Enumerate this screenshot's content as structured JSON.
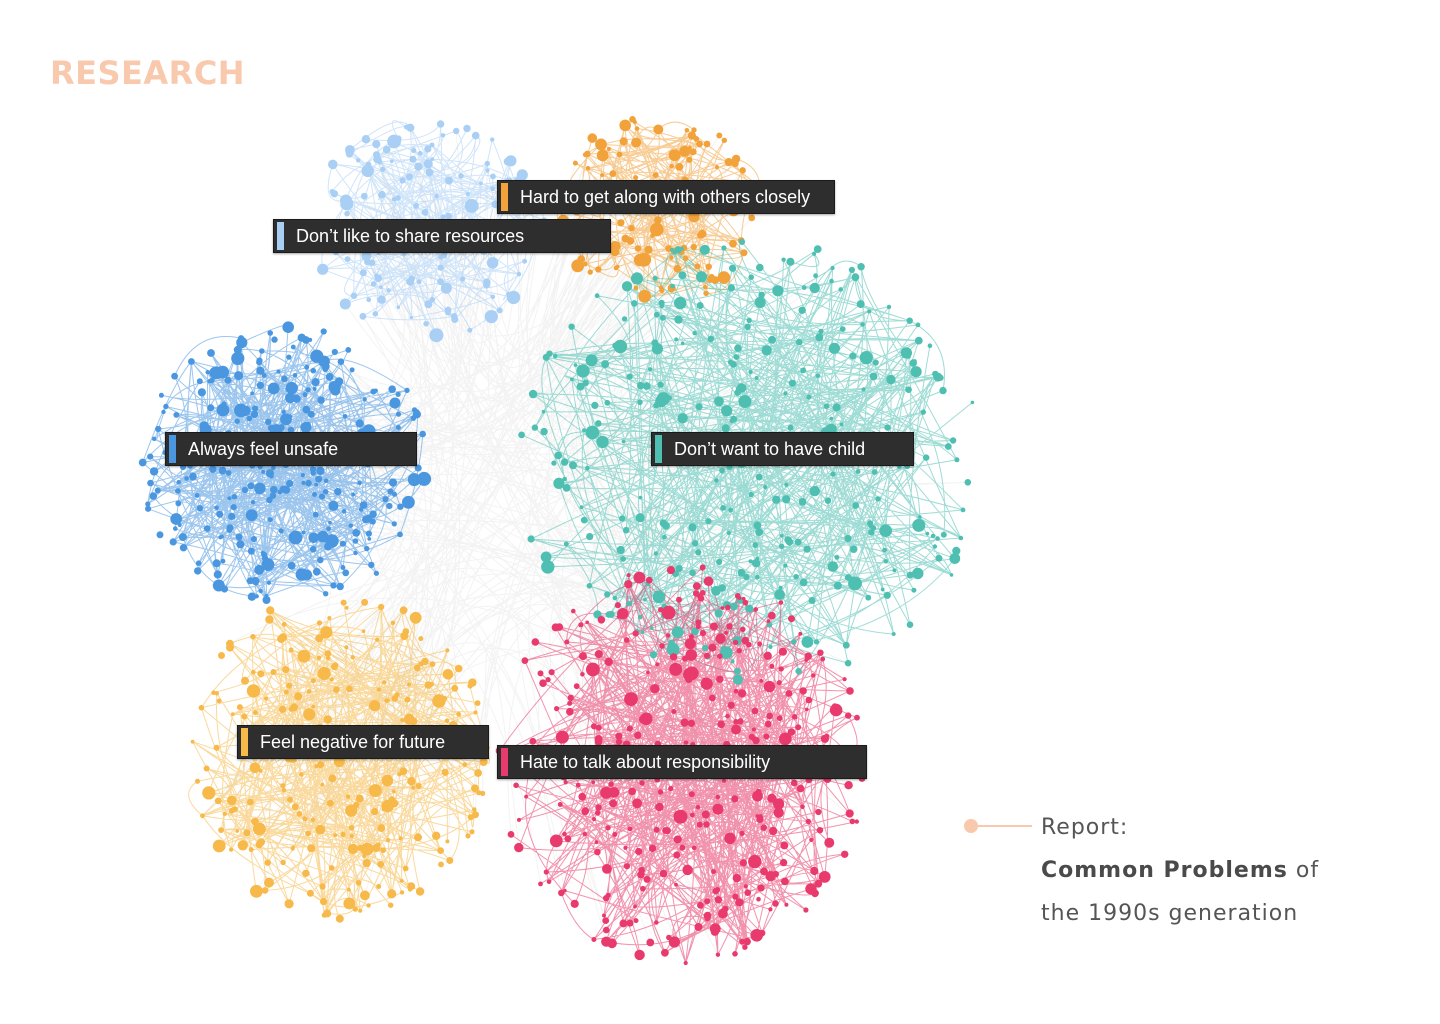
{
  "header": {
    "title": "RESEARCH"
  },
  "diagram": {
    "clusters": [
      {
        "id": "share",
        "label": "Don’t like to share resources",
        "color": "#a9cff5"
      },
      {
        "id": "along",
        "label": "Hard to get along with others closely",
        "color": "#f2a23b"
      },
      {
        "id": "unsafe",
        "label": "Always feel unsafe",
        "color": "#4a97e0"
      },
      {
        "id": "child",
        "label": "Don’t want to have child",
        "color": "#4fbfb2"
      },
      {
        "id": "future",
        "label": "Feel negative for future",
        "color": "#f6b94a"
      },
      {
        "id": "responsibility",
        "label": "Hate to talk about responsibility",
        "color": "#e83a6c"
      }
    ]
  },
  "report": {
    "prefix": "Report:",
    "bold": "Common Problems",
    "after_bold": " of",
    "line3": "the 1990s generation",
    "accent_color": "#f8c9ad"
  }
}
